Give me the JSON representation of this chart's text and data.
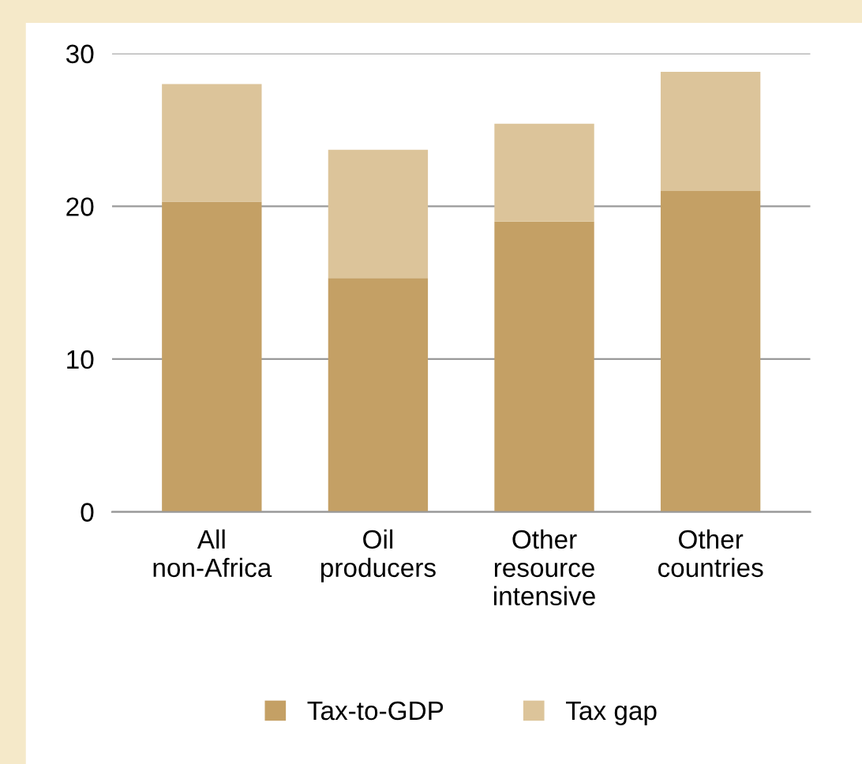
{
  "chart_data": {
    "type": "bar",
    "stacked": true,
    "categories": [
      "All\nnon-Africa",
      "Oil\nproducers",
      "Other\nresource\nintensive",
      "Other\ncountries"
    ],
    "series": [
      {
        "name": "Tax-to-GDP",
        "color": "#c4a065",
        "values": [
          20.3,
          15.3,
          19.0,
          21.0
        ]
      },
      {
        "name": "Tax gap",
        "color": "#dcc49a",
        "values": [
          7.7,
          8.4,
          6.4,
          7.8
        ]
      }
    ],
    "ylim": [
      0,
      30
    ],
    "yticks": [
      0,
      10,
      20,
      30
    ],
    "grid": "y",
    "legend": "bottom"
  }
}
